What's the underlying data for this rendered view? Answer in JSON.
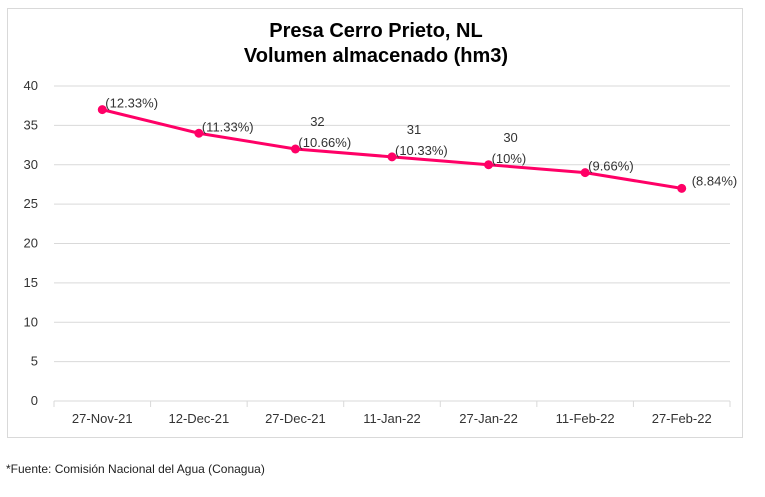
{
  "chart_data": {
    "type": "line",
    "title": [
      "Presa Cerro Prieto, NL",
      "Volumen almacenado (hm3)"
    ],
    "categories": [
      "27-Nov-21",
      "12-Dec-21",
      "27-Dec-21",
      "11-Jan-22",
      "27-Jan-22",
      "11-Feb-22",
      "27-Feb-22"
    ],
    "series": [
      {
        "name": "Volumen almacenado (hm3)",
        "values": [
          37,
          34,
          32,
          31,
          30,
          29,
          27
        ],
        "color": "#ff0066",
        "value_labels": [
          "",
          "",
          "32",
          "31",
          "30",
          "",
          ""
        ],
        "pct_labels": [
          "(12.33%)",
          "(11.33%)",
          "(10.66%)",
          "(10.33%)",
          "(10%)",
          "(9.66%)",
          "(8.84%)"
        ]
      }
    ],
    "ylim": [
      0,
      40
    ],
    "yticks": [
      "0",
      "5",
      "10",
      "15",
      "20",
      "25",
      "30",
      "35",
      "40"
    ],
    "xlabel": "",
    "ylabel": "",
    "grid": true
  },
  "source_note": "*Fuente: Comisión Nacional del Agua (Conagua)"
}
